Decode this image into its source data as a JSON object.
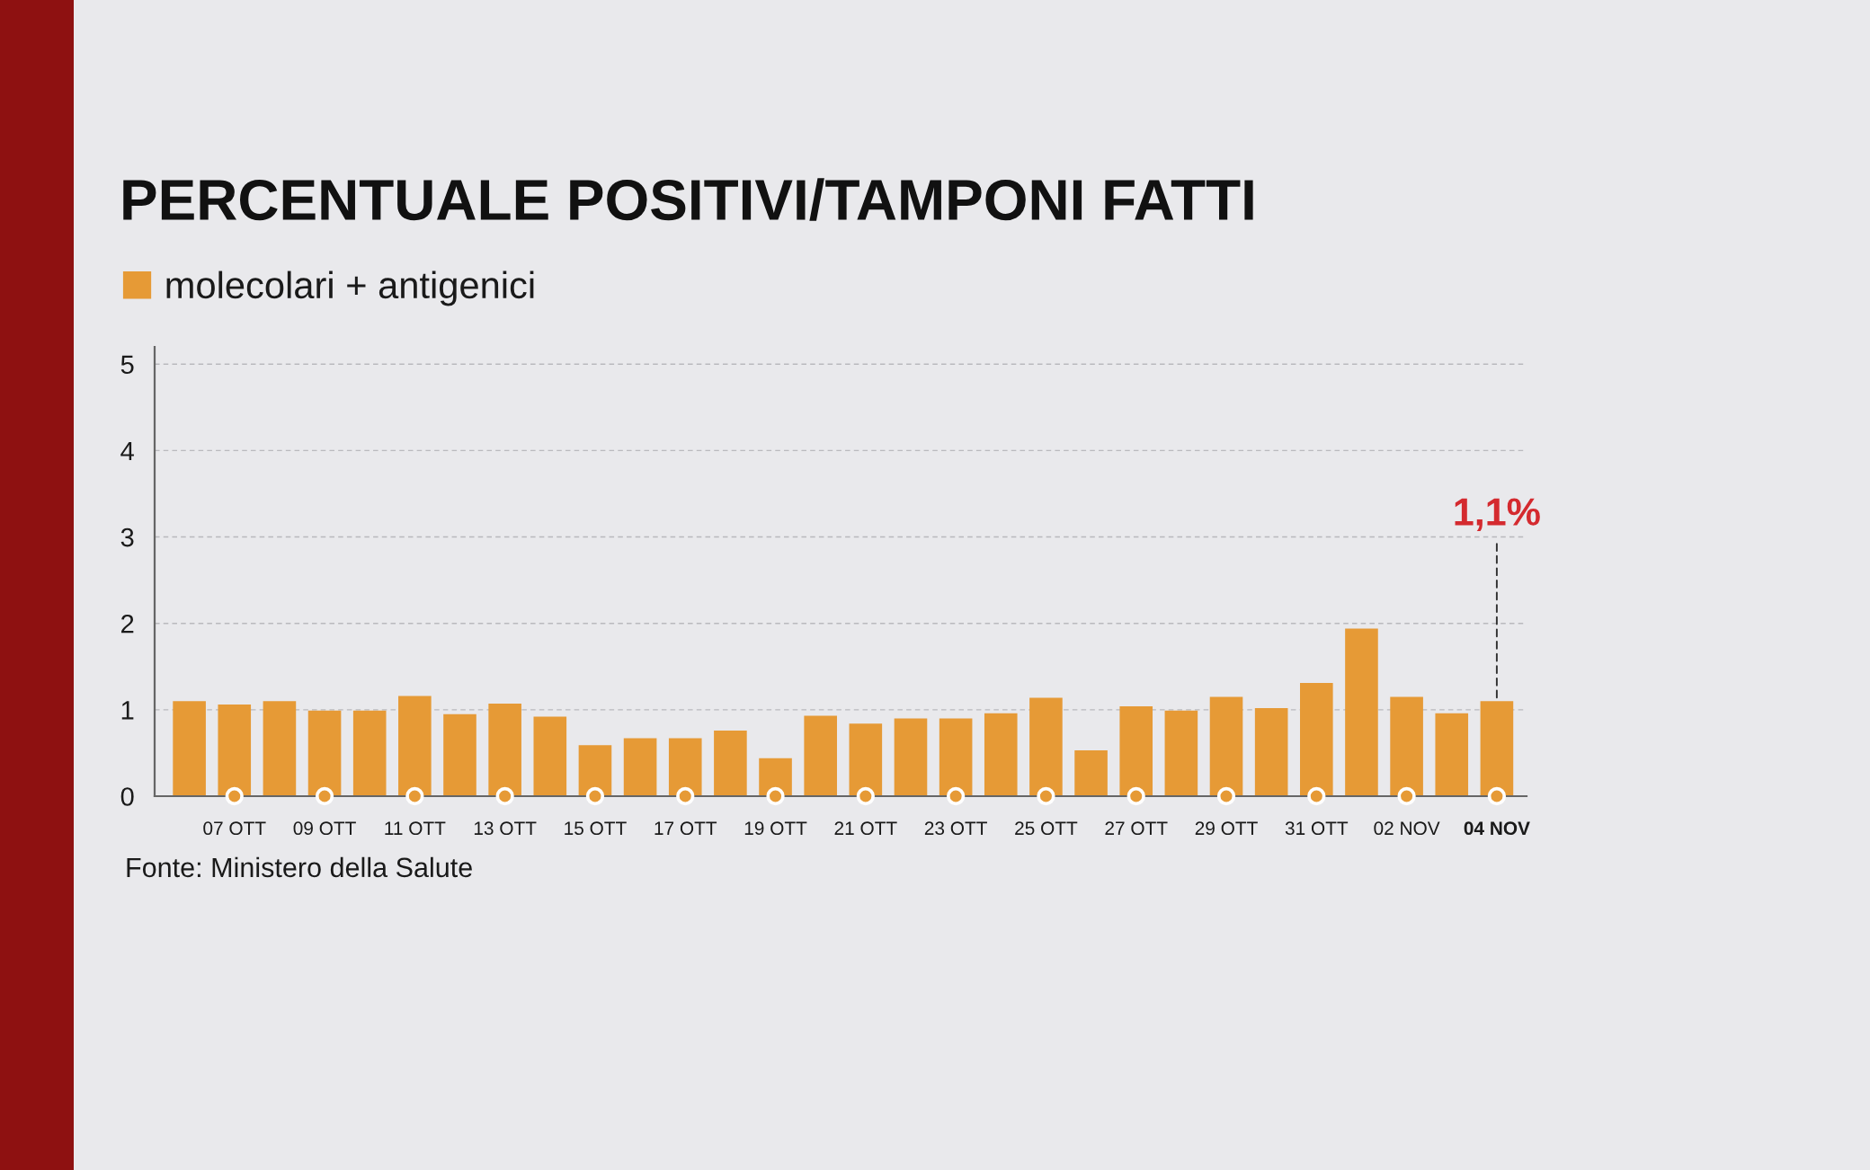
{
  "chart_data": {
    "type": "bar",
    "title": "PERCENTUALE POSITIVI/TAMPONI FATTI",
    "categories": [
      null,
      "07 OTT",
      null,
      "09 OTT",
      null,
      "11 OTT",
      null,
      "13 OTT",
      null,
      "15 OTT",
      null,
      "17 OTT",
      null,
      "19 OTT",
      null,
      "21 OTT",
      null,
      "23 OTT",
      null,
      "25 OTT",
      null,
      "27 OTT",
      null,
      "29 OTT",
      null,
      "31 OTT",
      null,
      "02 NOV",
      null,
      "04 NOV"
    ],
    "series": [
      {
        "name": "molecolari + antigenici",
        "color": "#e69a36",
        "values": [
          1.1,
          1.06,
          1.1,
          0.99,
          0.99,
          1.16,
          0.95,
          1.07,
          0.92,
          0.59,
          0.67,
          0.67,
          0.76,
          0.44,
          0.93,
          0.84,
          0.9,
          0.9,
          0.96,
          1.14,
          0.53,
          1.04,
          0.99,
          1.15,
          1.02,
          1.31,
          1.94,
          1.15,
          0.96,
          1.1
        ],
        "value_labels": [
          null,
          null,
          null,
          null,
          null,
          null,
          null,
          null,
          null,
          null,
          null,
          null,
          null,
          null,
          null,
          null,
          null,
          null,
          null,
          null,
          null,
          null,
          null,
          null,
          null,
          null,
          null,
          null,
          null,
          "1,1%"
        ]
      }
    ],
    "ylim": [
      0,
      5.2
    ],
    "yticks": [
      0,
      1,
      2,
      3,
      4,
      5
    ],
    "grid": "y",
    "legend": "top left",
    "annotations": [
      "Fonte: Ministero della Salute"
    ]
  }
}
